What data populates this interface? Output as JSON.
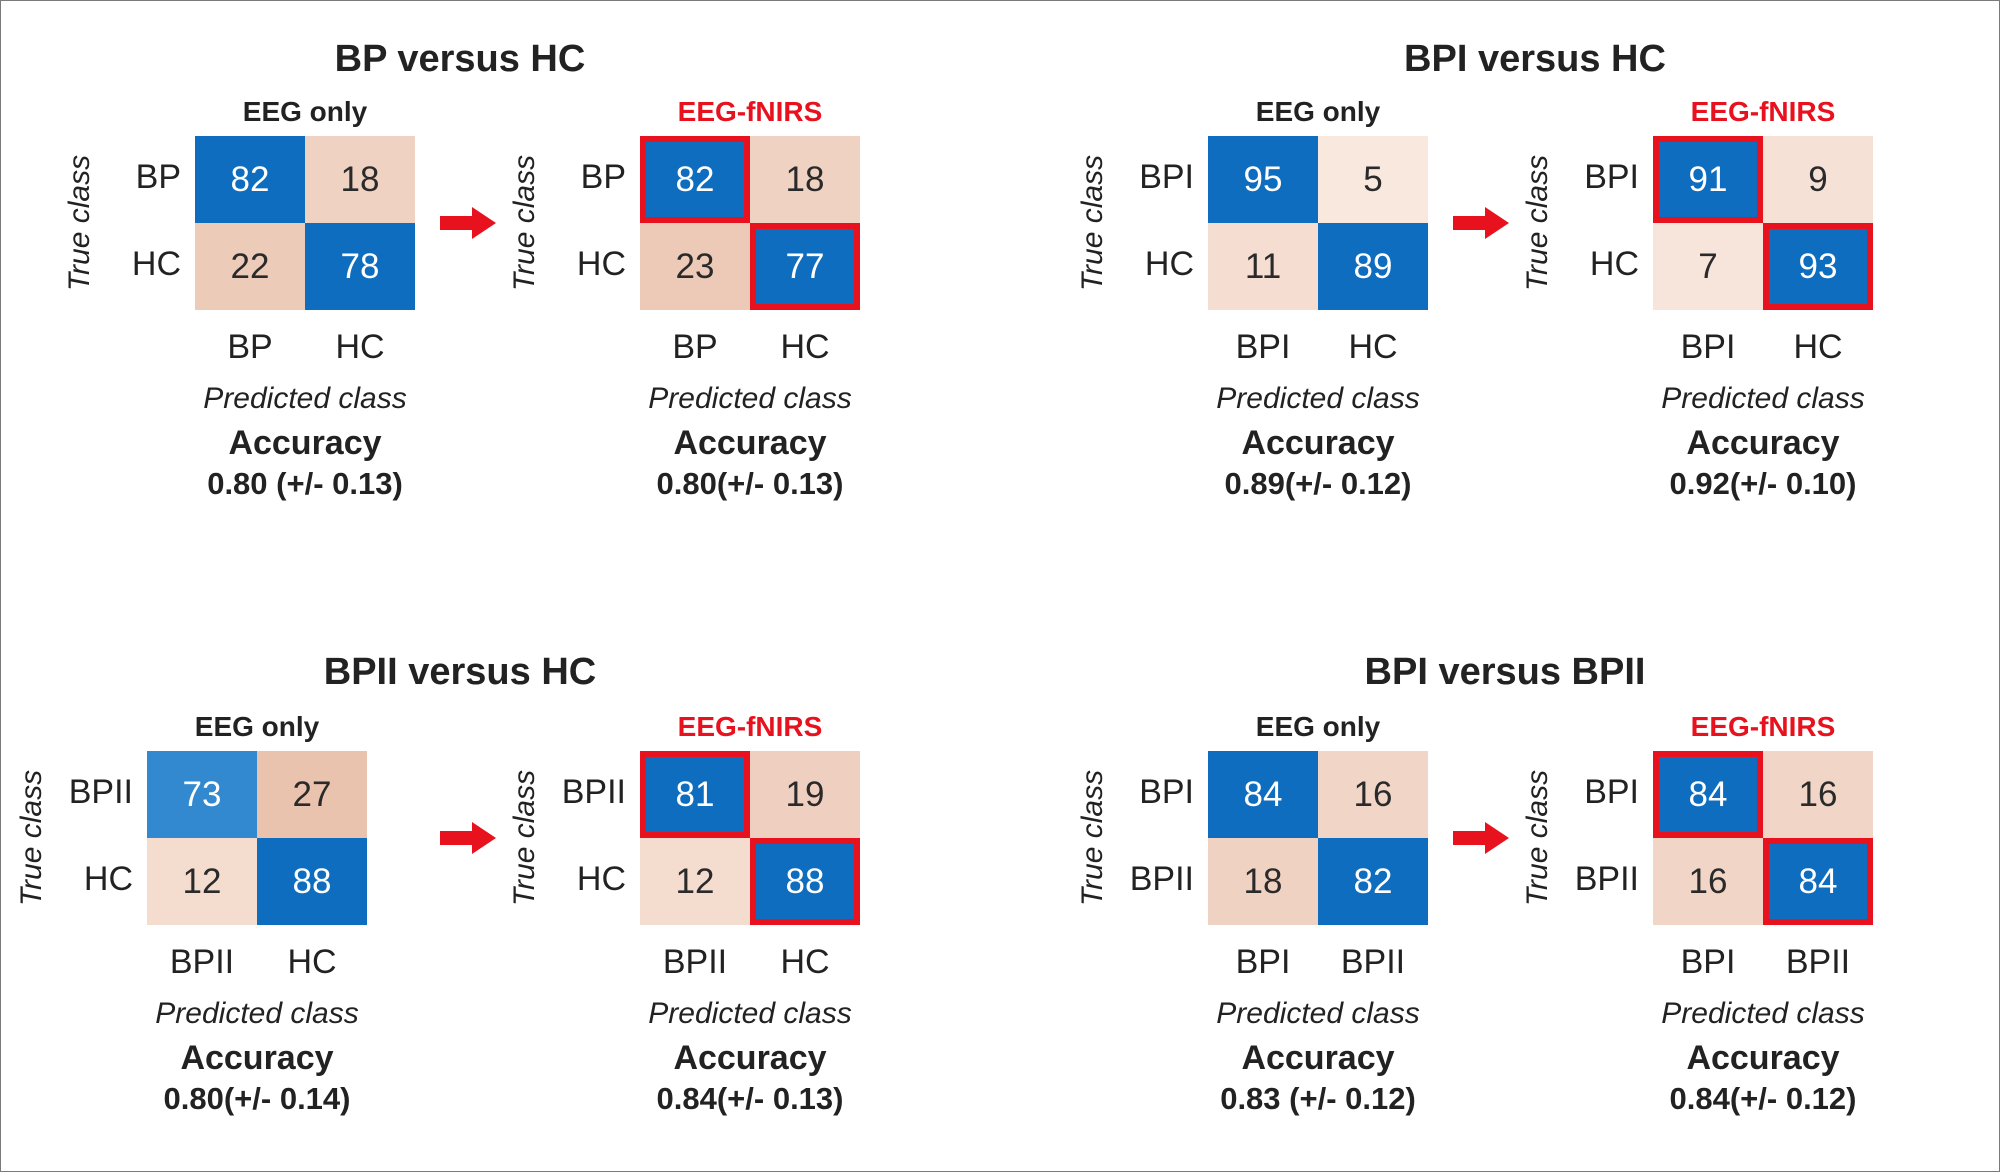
{
  "colors": {
    "high": "#0f6dbf",
    "mid_high": "#3289cf",
    "red": "#e8121f"
  },
  "labels": {
    "true_class": "True class",
    "predicted_class": "Predicted class",
    "accuracy": "Accuracy",
    "eeg_only": "EEG only",
    "eeg_fnirs": "EEG-fNIRS"
  },
  "chart_data": [
    {
      "type": "heatmap",
      "title": "BP versus HC",
      "matrices": [
        {
          "subtitle": "EEG only",
          "rows": [
            "BP",
            "HC"
          ],
          "cols": [
            "BP",
            "HC"
          ],
          "values": [
            [
              82,
              18
            ],
            [
              22,
              78
            ]
          ],
          "accuracy": "0.80 (+/- 0.13)"
        },
        {
          "subtitle": "EEG-fNIRS",
          "rows": [
            "BP",
            "HC"
          ],
          "cols": [
            "BP",
            "HC"
          ],
          "values": [
            [
              82,
              18
            ],
            [
              23,
              77
            ]
          ],
          "accuracy": "0.80(+/- 0.13)"
        }
      ]
    },
    {
      "type": "heatmap",
      "title": "BPI versus HC",
      "matrices": [
        {
          "subtitle": "EEG only",
          "rows": [
            "BPI",
            "HC"
          ],
          "cols": [
            "BPI",
            "HC"
          ],
          "values": [
            [
              95,
              5
            ],
            [
              11,
              89
            ]
          ],
          "accuracy": "0.89(+/- 0.12)"
        },
        {
          "subtitle": "EEG-fNIRS",
          "rows": [
            "BPI",
            "HC"
          ],
          "cols": [
            "BPI",
            "HC"
          ],
          "values": [
            [
              91,
              9
            ],
            [
              7,
              93
            ]
          ],
          "accuracy": "0.92(+/- 0.10)"
        }
      ]
    },
    {
      "type": "heatmap",
      "title": "BPII versus HC",
      "matrices": [
        {
          "subtitle": "EEG only",
          "rows": [
            "BPII",
            "HC"
          ],
          "cols": [
            "BPII",
            "HC"
          ],
          "values": [
            [
              73,
              27
            ],
            [
              12,
              88
            ]
          ],
          "accuracy": "0.80(+/- 0.14)"
        },
        {
          "subtitle": "EEG-fNIRS",
          "rows": [
            "BPII",
            "HC"
          ],
          "cols": [
            "BPII",
            "HC"
          ],
          "values": [
            [
              81,
              19
            ],
            [
              12,
              88
            ]
          ],
          "accuracy": "0.84(+/- 0.13)"
        }
      ]
    },
    {
      "type": "heatmap",
      "title": "BPI versus BPII",
      "matrices": [
        {
          "subtitle": "EEG only",
          "rows": [
            "BPI",
            "BPII"
          ],
          "cols": [
            "BPI",
            "BPII"
          ],
          "values": [
            [
              84,
              16
            ],
            [
              18,
              82
            ]
          ],
          "accuracy": "0.83 (+/- 0.12)"
        },
        {
          "subtitle": "EEG-fNIRS",
          "rows": [
            "BPI",
            "BPII"
          ],
          "cols": [
            "BPI",
            "BPII"
          ],
          "values": [
            [
              84,
              16
            ],
            [
              16,
              84
            ]
          ],
          "accuracy": "0.84(+/- 0.12)"
        }
      ]
    }
  ]
}
